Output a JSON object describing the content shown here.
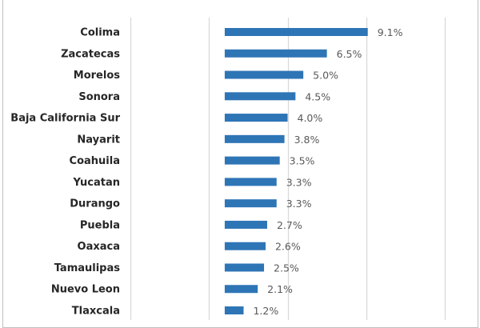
{
  "chart_data": {
    "type": "bar",
    "orientation": "horizontal",
    "categories": [
      "Colima",
      "Zacatecas",
      "Morelos",
      "Sonora",
      "Baja California Sur",
      "Nayarit",
      "Coahuila",
      "Yucatan",
      "Durango",
      "Puebla",
      "Oaxaca",
      "Tamaulipas",
      "Nuevo Leon",
      "Tlaxcala"
    ],
    "values": [
      9.1,
      6.5,
      5.0,
      4.5,
      4.0,
      3.8,
      3.5,
      3.3,
      3.3,
      2.7,
      2.6,
      2.5,
      2.1,
      1.2
    ],
    "data_labels": [
      "9.1%",
      "6.5%",
      "5.0%",
      "4.5%",
      "4.0%",
      "3.8%",
      "3.5%",
      "3.3%",
      "3.3%",
      "2.7%",
      "2.6%",
      "2.5%",
      "2.1%",
      "1.2%"
    ],
    "xlim": [
      -6,
      14
    ],
    "gridlines_at": [
      -6,
      -1,
      4,
      9,
      14
    ],
    "grid": true,
    "bar_color": "#2e75b6",
    "gridline_color": "#d9d9d9",
    "title": "",
    "xlabel": "",
    "ylabel": ""
  }
}
